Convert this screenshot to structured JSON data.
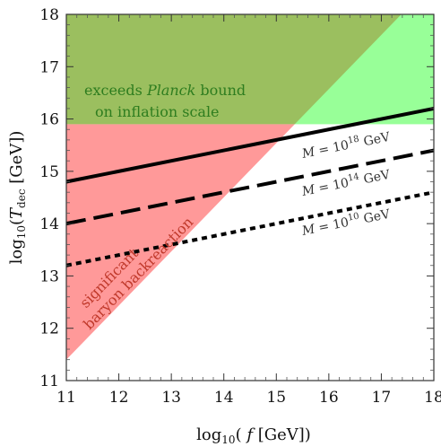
{
  "chart_data": {
    "type": "area",
    "xlabel_pre": "log",
    "xlabel_sub": "10",
    "xlabel_open": "( ",
    "xlabel_var": "f",
    "xlabel_unit": " [GeV])",
    "ylabel_pre": "log",
    "ylabel_sub": "10",
    "ylabel_open": "(",
    "ylabel_var": "T",
    "ylabel_varsub": "dec",
    "ylabel_unit": "  [GeV])",
    "xlim": [
      11,
      18
    ],
    "ylim": [
      11,
      18
    ],
    "xticks": [
      11,
      12,
      13,
      14,
      15,
      16,
      17,
      18
    ],
    "yticks": [
      11,
      12,
      13,
      14,
      15,
      16,
      17,
      18
    ],
    "regions": [
      {
        "name": "planck",
        "label_lines": [
          {
            "pre": "exceeds ",
            "emph": "Planck",
            "post": " bound"
          },
          {
            "pre": "on inflation scale",
            "emph": "",
            "post": ""
          }
        ],
        "color": "#98ff98",
        "overlap_color": "#9bbf5f",
        "text_color": "#2e7d1f",
        "y_min": 15.9,
        "y_max": 18
      },
      {
        "name": "backreaction",
        "label_lines": [
          "significant",
          "baryon backreaction"
        ],
        "color": "#ff9999",
        "text_color": "#c0392b",
        "vertices": [
          [
            11,
            11.4
          ],
          [
            11,
            15.9
          ],
          [
            15.35,
            15.9
          ]
        ]
      }
    ],
    "series": [
      {
        "name": "M = 10^18 GeV",
        "label_pre": "M = 10",
        "label_exp": "18",
        "label_post": " GeV",
        "x": [
          11,
          18
        ],
        "y": [
          14.8,
          16.2
        ],
        "dash": "solid",
        "color": "#000000"
      },
      {
        "name": "M = 10^14 GeV",
        "label_pre": "M = 10",
        "label_exp": "14",
        "label_post": " GeV",
        "x": [
          11,
          18
        ],
        "y": [
          14.0,
          15.4
        ],
        "dash": "dashed",
        "color": "#000000"
      },
      {
        "name": "M = 10^10 GeV",
        "label_pre": "M = 10",
        "label_exp": "10",
        "label_post": " GeV",
        "x": [
          11,
          18
        ],
        "y": [
          13.2,
          14.6
        ],
        "dash": "dotted",
        "color": "#000000"
      }
    ],
    "grid": false
  }
}
